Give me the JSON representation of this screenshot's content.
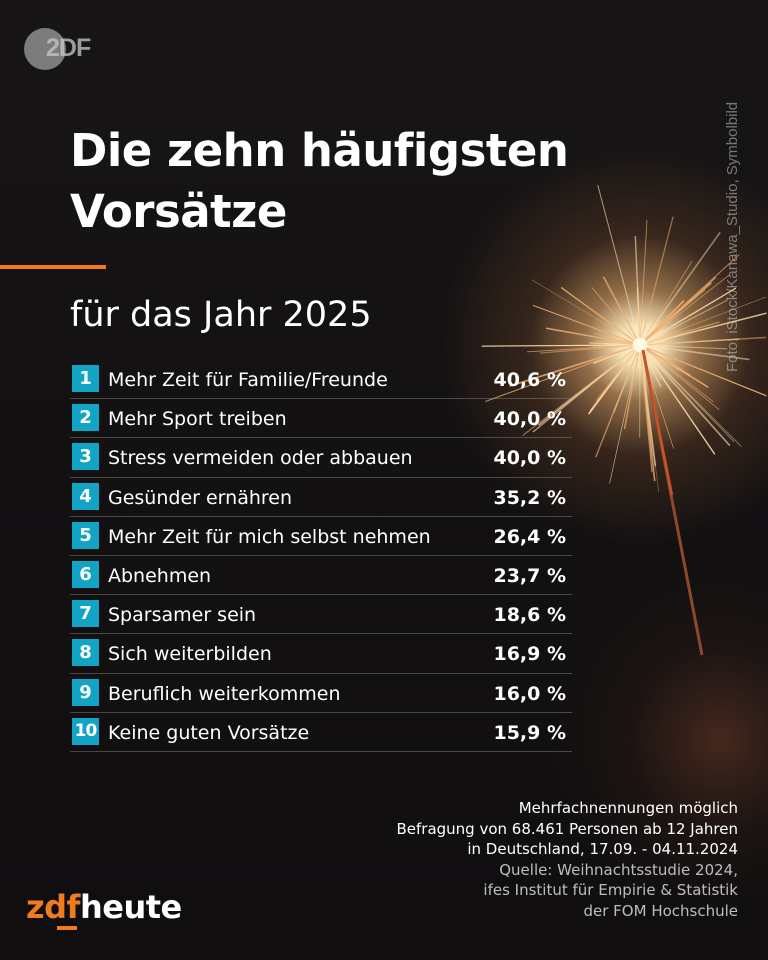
{
  "header": {
    "logo_text": "2DF",
    "photo_credit": "Foto: iStock/Kanawa_Studio, Symbolbild"
  },
  "title": "Die zehn häufigsten Vorsätze",
  "subtitle": "für das Jahr 2025",
  "chart_data": {
    "type": "table",
    "title": "Die zehn häufigsten Vorsätze",
    "subtitle": "für das Jahr 2025",
    "unit": "%",
    "rows": [
      {
        "rank": "1",
        "label": "Mehr Zeit für Familie/Freunde",
        "value": 40.6,
        "value_text": "40,6 %"
      },
      {
        "rank": "2",
        "label": "Mehr Sport treiben",
        "value": 40.0,
        "value_text": "40,0 %"
      },
      {
        "rank": "3",
        "label": "Stress vermeiden oder abbauen",
        "value": 40.0,
        "value_text": "40,0 %"
      },
      {
        "rank": "4",
        "label": "Gesünder ernähren",
        "value": 35.2,
        "value_text": "35,2 %"
      },
      {
        "rank": "5",
        "label": "Mehr Zeit für mich selbst nehmen",
        "value": 26.4,
        "value_text": "26,4 %"
      },
      {
        "rank": "6",
        "label": "Abnehmen",
        "value": 23.7,
        "value_text": "23,7 %"
      },
      {
        "rank": "7",
        "label": "Sparsamer sein",
        "value": 18.6,
        "value_text": "18,6 %"
      },
      {
        "rank": "8",
        "label": "Sich weiterbilden",
        "value": 16.9,
        "value_text": "16,9 %"
      },
      {
        "rank": "9",
        "label": "Beruflich weiterkommen",
        "value": 16.0,
        "value_text": "16,0 %"
      },
      {
        "rank": "10",
        "label": "Keine guten Vorsätze",
        "value": 15.9,
        "value_text": "15,9 %"
      }
    ]
  },
  "footnote": {
    "lines": [
      "Mehrfachnennungen möglich",
      "Befragung von 68.461 Personen ab 12 Jahren",
      "in Deutschland, 17.09. - 04.11.2024"
    ],
    "source_lines": [
      "Quelle: Weihnachtsstudie 2024,",
      "ifes Institut für Empirie & Statistik",
      "der FOM Hochschule"
    ]
  },
  "brand": {
    "part1": "zdf",
    "part2": "heute"
  },
  "colors": {
    "accent_orange": "#f07d1d",
    "rank_badge": "#12a4c4",
    "background": "#141213"
  }
}
